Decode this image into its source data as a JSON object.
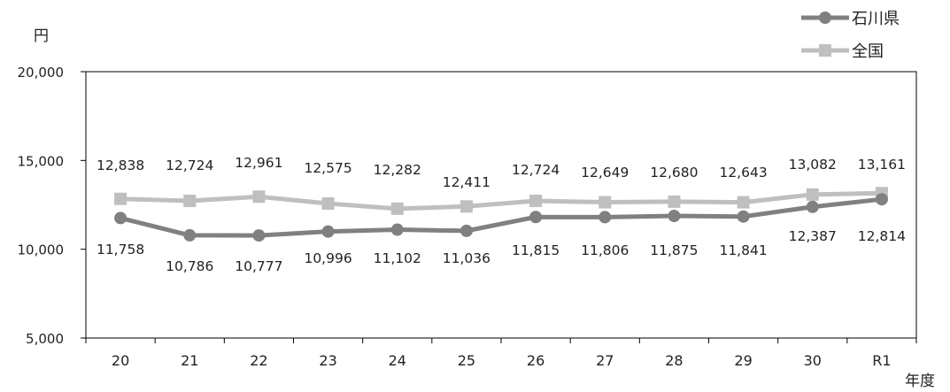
{
  "chart_data": {
    "type": "line",
    "title": "",
    "ylabel": "円",
    "xlabel": "年度",
    "ylim": [
      5000,
      20000
    ],
    "yticks": [
      "20,000",
      "15,000",
      "10,000",
      "5,000"
    ],
    "ytick_values": [
      20000,
      15000,
      10000,
      5000
    ],
    "categories": [
      "20",
      "21",
      "22",
      "23",
      "24",
      "25",
      "26",
      "27",
      "28",
      "29",
      "30",
      "R1"
    ],
    "grid": false,
    "legend_position": "top-right",
    "series": [
      {
        "name": "石川県",
        "marker": "circle",
        "color": "#808080",
        "values": [
          11758,
          10786,
          10777,
          10996,
          11102,
          11036,
          11815,
          11806,
          11875,
          11841,
          12387,
          12814
        ],
        "labels": [
          "11,758",
          "10,786",
          "10,777",
          "10,996",
          "11,102",
          "11,036",
          "11,815",
          "11,806",
          "11,875",
          "11,841",
          "12,387",
          "12,814"
        ]
      },
      {
        "name": "全国",
        "marker": "square",
        "color": "#bfbfbf",
        "values": [
          12838,
          12724,
          12961,
          12575,
          12282,
          12411,
          12724,
          12649,
          12680,
          12643,
          13082,
          13161
        ],
        "labels": [
          "12,838",
          "12,724",
          "12,961",
          "12,575",
          "12,282",
          "12,411",
          "12,724",
          "12,649",
          "12,680",
          "12,643",
          "13,082",
          "13,161"
        ]
      }
    ]
  }
}
